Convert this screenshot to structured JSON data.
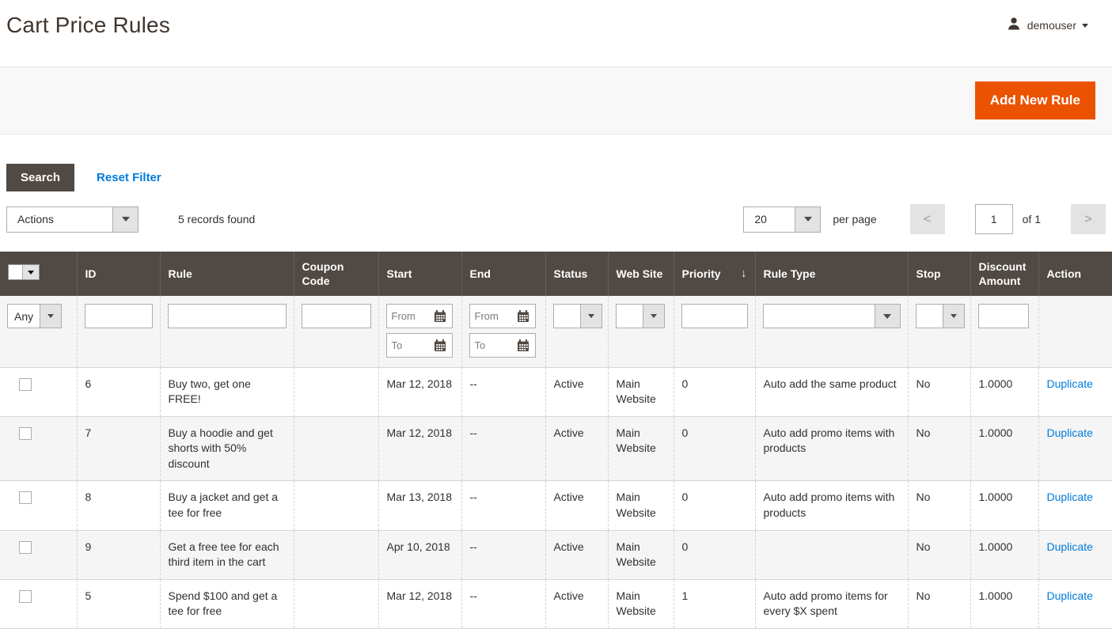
{
  "page": {
    "title": "Cart Price Rules"
  },
  "user_menu": {
    "username": "demouser"
  },
  "toolbar": {
    "add_new_rule_label": "Add New Rule"
  },
  "filter_actions": {
    "search_label": "Search",
    "reset_label": "Reset Filter"
  },
  "grid_toolbar": {
    "actions_label": "Actions",
    "records_found": "5 records found",
    "per_page_value": "20",
    "per_page_label": "per page",
    "prev_label": "<",
    "next_label": ">",
    "page_value": "1",
    "page_of_label": "of 1"
  },
  "table": {
    "columns": [
      "ID",
      "Rule",
      "Coupon Code",
      "Start",
      "End",
      "Status",
      "Web Site",
      "Priority",
      "Rule Type",
      "Stop",
      "Discount Amount",
      "Action"
    ],
    "sort": {
      "column": "Priority",
      "direction_icon": "↓"
    },
    "filter": {
      "any_label": "Any",
      "from_placeholder": "From",
      "to_placeholder": "To"
    },
    "rows": [
      {
        "id": "6",
        "rule": "Buy two, get one FREE!",
        "coupon_code": "",
        "start": "Mar 12, 2018",
        "end": "--",
        "status": "Active",
        "web_site": "Main Website",
        "priority": "0",
        "rule_type": "Auto add the same product",
        "stop": "No",
        "discount_amount": "1.0000",
        "action": "Duplicate"
      },
      {
        "id": "7",
        "rule": "Buy a hoodie and get shorts with 50% discount",
        "coupon_code": "",
        "start": "Mar 12, 2018",
        "end": "--",
        "status": "Active",
        "web_site": "Main Website",
        "priority": "0",
        "rule_type": "Auto add promo items with products",
        "stop": "No",
        "discount_amount": "1.0000",
        "action": "Duplicate"
      },
      {
        "id": "8",
        "rule": "Buy a jacket and get a tee for free",
        "coupon_code": "",
        "start": "Mar 13, 2018",
        "end": "--",
        "status": "Active",
        "web_site": "Main Website",
        "priority": "0",
        "rule_type": "Auto add promo items with products",
        "stop": "No",
        "discount_amount": "1.0000",
        "action": "Duplicate"
      },
      {
        "id": "9",
        "rule": "Get a free tee for each third item in the cart",
        "coupon_code": "",
        "start": "Apr 10, 2018",
        "end": "--",
        "status": "Active",
        "web_site": "Main Website",
        "priority": "0",
        "rule_type": "",
        "stop": "No",
        "discount_amount": "1.0000",
        "action": "Duplicate"
      },
      {
        "id": "5",
        "rule": "Spend $100 and get a tee for free",
        "coupon_code": "",
        "start": "Mar 12, 2018",
        "end": "--",
        "status": "Active",
        "web_site": "Main Website",
        "priority": "1",
        "rule_type": "Auto add promo items for every $X spent",
        "stop": "No",
        "discount_amount": "1.0000",
        "action": "Duplicate"
      }
    ]
  },
  "colors": {
    "accent": "#eb5202",
    "grid_header_bg": "#514943",
    "link": "#007bdb"
  }
}
